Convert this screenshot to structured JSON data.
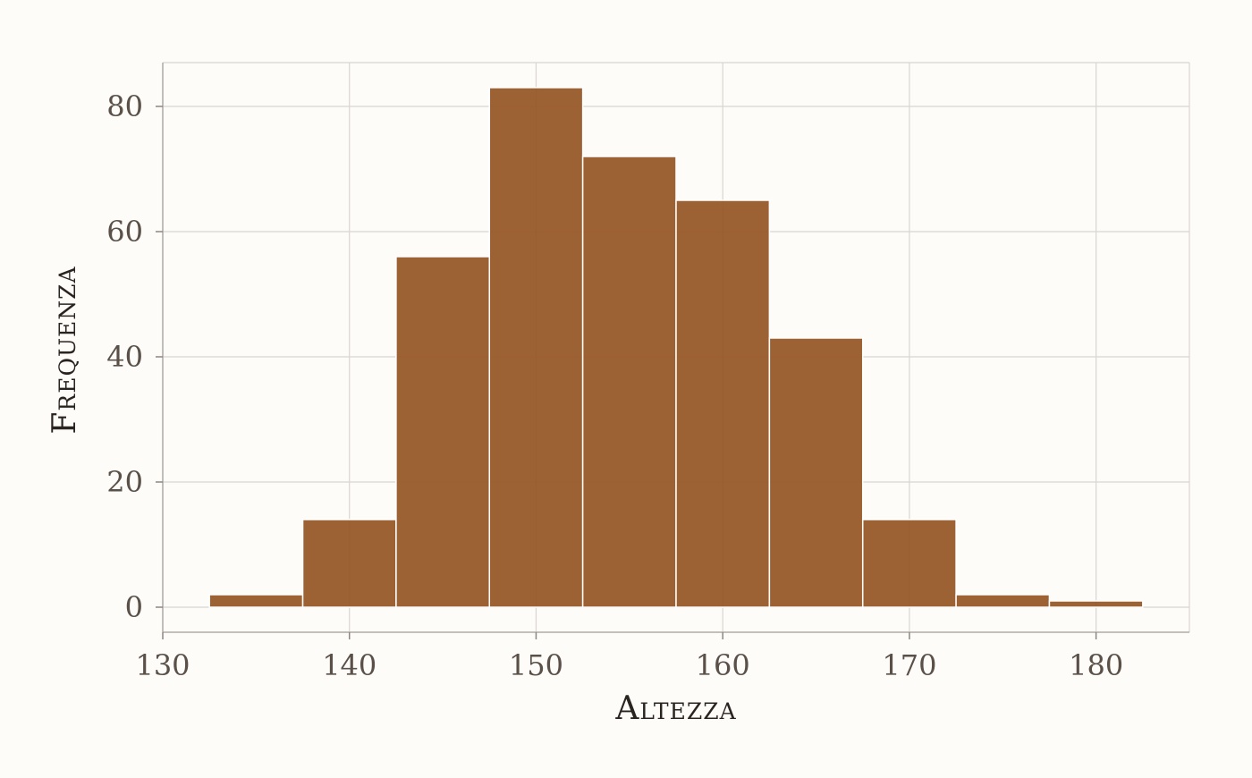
{
  "chart_data": {
    "type": "bar",
    "subtype": "histogram",
    "xlabel": "Altezza",
    "ylabel": "Frequenza",
    "xlim": [
      130,
      185
    ],
    "ylim": [
      -4,
      87
    ],
    "x_ticks": [
      130,
      140,
      150,
      160,
      170,
      180
    ],
    "y_ticks": [
      0,
      20,
      40,
      60,
      80
    ],
    "x_tick_labels": [
      "130",
      "140",
      "150",
      "160",
      "170",
      "180"
    ],
    "y_tick_labels": [
      "0",
      "20",
      "40",
      "60",
      "80"
    ],
    "bins": [
      {
        "start": 132.5,
        "end": 137.5,
        "value": 2
      },
      {
        "start": 137.5,
        "end": 142.5,
        "value": 14
      },
      {
        "start": 142.5,
        "end": 147.5,
        "value": 56
      },
      {
        "start": 147.5,
        "end": 152.5,
        "value": 83
      },
      {
        "start": 152.5,
        "end": 157.5,
        "value": 72
      },
      {
        "start": 157.5,
        "end": 162.5,
        "value": 65
      },
      {
        "start": 162.5,
        "end": 167.5,
        "value": 43
      },
      {
        "start": 167.5,
        "end": 172.5,
        "value": 14
      },
      {
        "start": 172.5,
        "end": 177.5,
        "value": 2
      },
      {
        "start": 177.5,
        "end": 182.5,
        "value": 1
      }
    ],
    "bar_color": "#955523",
    "bar_opacity": 0.92,
    "grid": true,
    "legend": "none"
  }
}
